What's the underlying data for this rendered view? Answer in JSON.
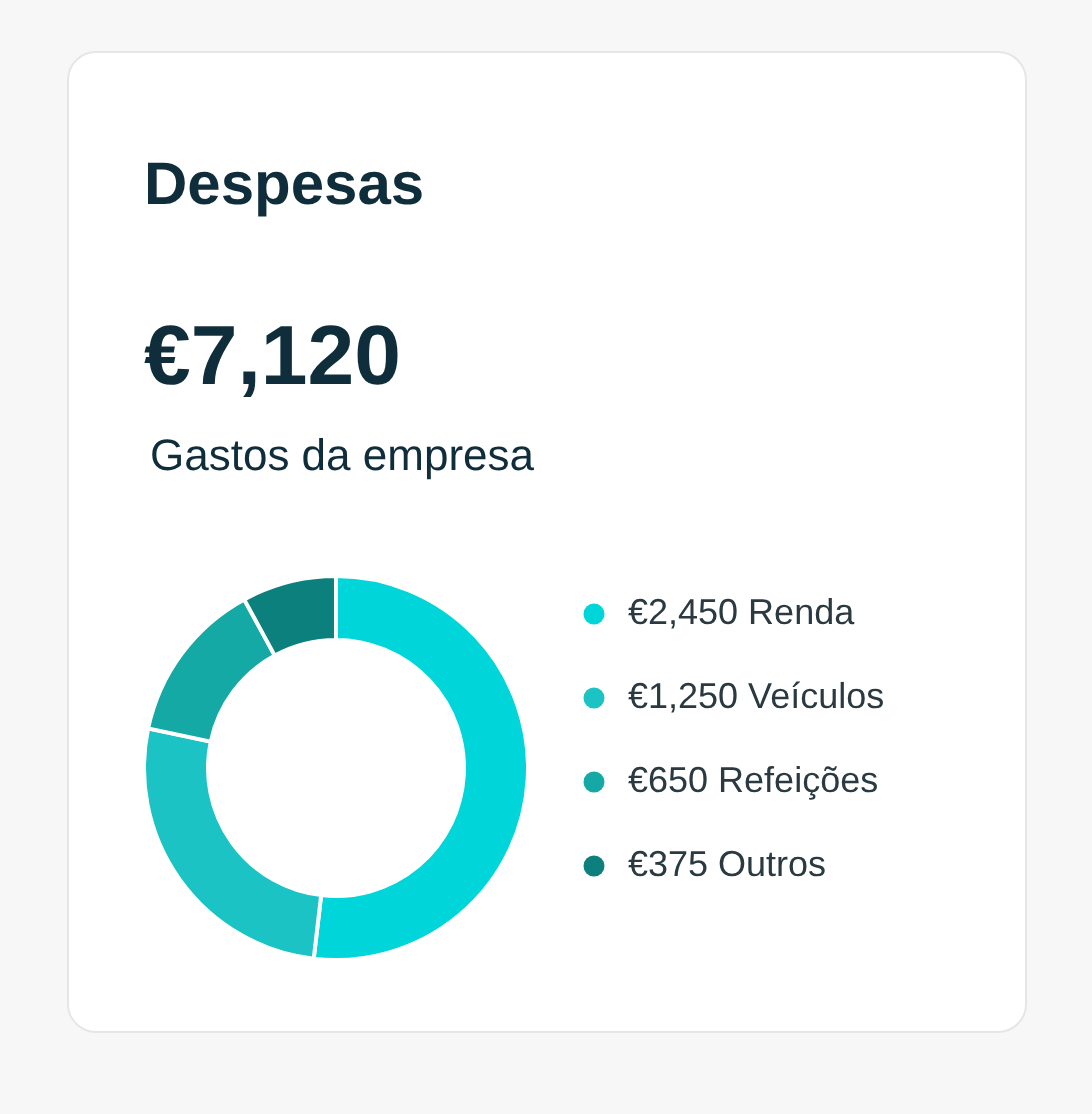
{
  "chart_data": {
    "type": "donut",
    "title": "Despesas",
    "subtitle": "Gastos da empresa",
    "annotations": [
      "€7,120"
    ],
    "categories": [
      "Renda",
      "Veículos",
      "Refeições",
      "Outros"
    ],
    "values": [
      2450,
      1250,
      650,
      375
    ],
    "value_labels": [
      "€2,450",
      "€1,250",
      "€650",
      "€375"
    ],
    "colors": [
      "#00d6d9",
      "#1cc3c4",
      "#14a9a5",
      "#0b807d"
    ],
    "legend": "right"
  }
}
